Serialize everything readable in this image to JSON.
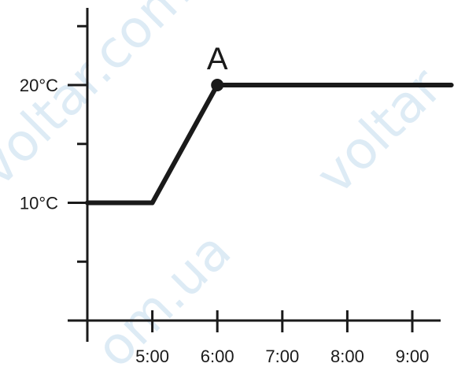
{
  "chart_data": {
    "type": "line",
    "title": "",
    "xlabel": "",
    "ylabel": "",
    "x_ticks": [
      "5:00",
      "6:00",
      "7:00",
      "8:00",
      "9:00"
    ],
    "y_ticks": [
      "10°C",
      "20°C"
    ],
    "series": [
      {
        "x": [
          4.0,
          5.0,
          6.0,
          9.6
        ],
        "y": [
          10,
          10,
          20,
          20
        ]
      }
    ],
    "annotations": [
      {
        "label": "A",
        "x": 6.0,
        "y": 20
      }
    ],
    "xlim": [
      4.0,
      9.6
    ],
    "ylim": [
      0,
      25
    ],
    "grid": false,
    "legend": "none",
    "colors": {
      "line": "#1a1a1a",
      "axis": "#1a1a1a",
      "text": "#1a1a1a"
    }
  },
  "watermarks": [
    "voltar.com",
    "voltar",
    "om.ua"
  ]
}
